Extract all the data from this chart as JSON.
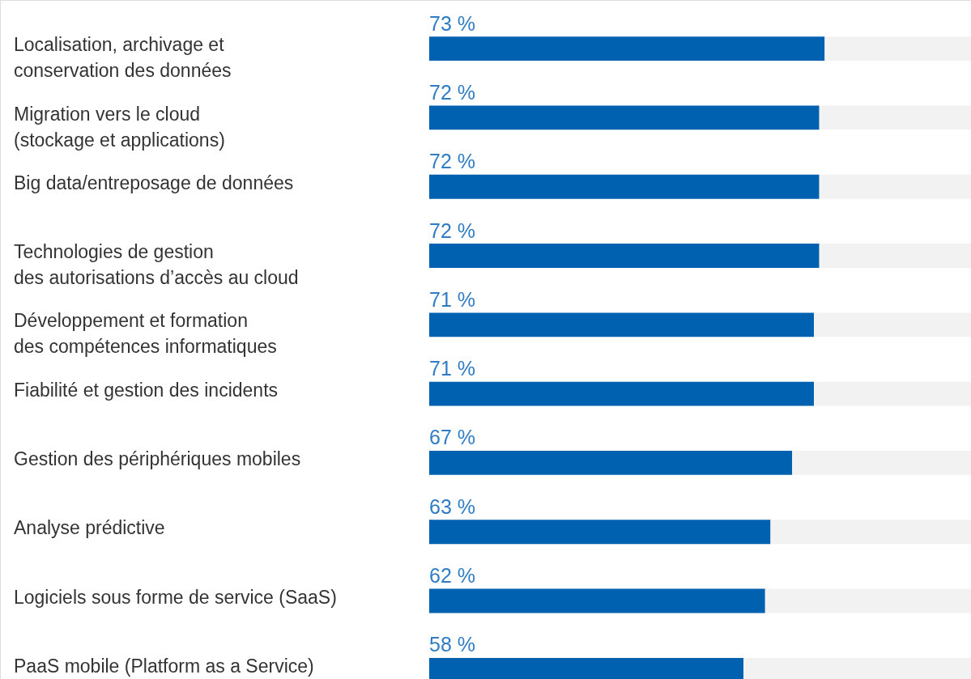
{
  "chart_data": {
    "type": "bar",
    "orientation": "horizontal",
    "stacked": true,
    "xlim": [
      0,
      100
    ],
    "categories": [
      "Localisation, archivage et\nconservation des données",
      "Migration vers le cloud\n(stockage et applications)",
      "Big data/entreposage de données",
      "Technologies de gestion\ndes autorisations d’accès au cloud",
      "Développement et formation\ndes compétences informatiques",
      "Fiabilité et gestion des incidents",
      "Gestion des périphériques mobiles",
      "Analyse prédictive",
      "Logiciels sous forme de service (SaaS)",
      "PaaS mobile (Platform as a Service)"
    ],
    "series": [
      {
        "color": "#0061b0",
        "values": [
          73,
          72,
          72,
          72,
          71,
          71,
          67,
          63,
          62,
          58
        ],
        "value_labels": [
          "73 %",
          "72 %",
          "72 %",
          "72 %",
          "71 %",
          "71 %",
          "67 %",
          "63 %",
          "62 %",
          "58 %"
        ]
      },
      {
        "color": "#f2f2f2",
        "values": [
          27,
          28,
          28,
          28,
          29,
          29,
          33,
          37,
          38,
          42
        ]
      }
    ]
  }
}
